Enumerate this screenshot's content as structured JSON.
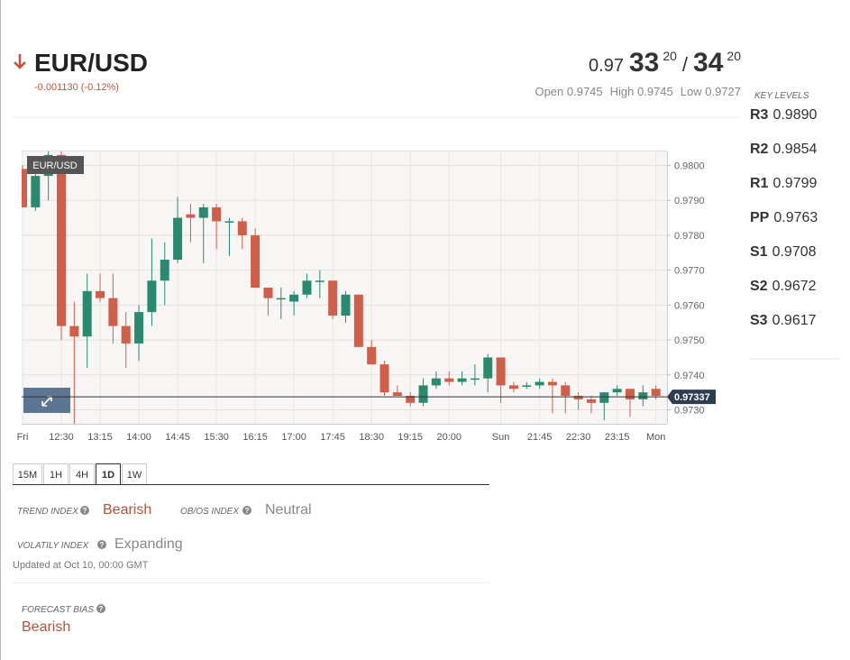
{
  "header": {
    "symbol": "EUR/USD",
    "change": "-0.001130 (-0.12%)",
    "price": [
      "0.97",
      "33",
      "20",
      "/",
      "34",
      "20"
    ],
    "open": "Open 0.9745",
    "high": "High 0.9745",
    "low": "Low 0.9727"
  },
  "key_levels": {
    "title": "KEY LEVELS",
    "rows": [
      {
        "label": "R3",
        "value": "0.9890"
      },
      {
        "label": "R2",
        "value": "0.9854"
      },
      {
        "label": "R1",
        "value": "0.9799"
      },
      {
        "label": "PP",
        "value": "0.9763"
      },
      {
        "label": "S1",
        "value": "0.9708"
      },
      {
        "label": "S2",
        "value": "0.9672"
      },
      {
        "label": "S3",
        "value": "0.9617"
      }
    ]
  },
  "chart_data": {
    "type": "candlestick",
    "title": "EUR/USD",
    "categories": [
      "Fri",
      null,
      null,
      "12:30",
      null,
      null,
      "13:15",
      null,
      null,
      "14:00",
      null,
      null,
      "14:45",
      null,
      null,
      "15:30",
      null,
      null,
      "16:15",
      null,
      null,
      "17:00",
      null,
      null,
      "17:45",
      null,
      null,
      "18:30",
      null,
      null,
      "19:15",
      null,
      null,
      "20:00",
      null,
      null,
      null,
      "Sun",
      null,
      null,
      "21:45",
      null,
      null,
      "22:30",
      null,
      null,
      "23:15",
      null,
      null,
      "Mon"
    ],
    "open": [
      0.9799,
      0.9788,
      0.9797,
      0.9803,
      0.9754,
      0.9751,
      0.9764,
      0.9762,
      0.9754,
      0.9749,
      0.9758,
      0.9767,
      0.9773,
      0.9786,
      0.9785,
      0.9788,
      0.9784,
      0.9784,
      0.978,
      0.9765,
      0.9762,
      0.9761,
      0.9763,
      0.9767,
      0.9767,
      0.9757,
      0.9763,
      0.9748,
      0.9743,
      0.9735,
      0.9734,
      0.9732,
      0.9737,
      0.9739,
      0.9738,
      0.9739,
      0.9739,
      0.9745,
      0.9737,
      0.9737,
      0.9737,
      0.9738,
      0.9737,
      0.9734,
      0.9733,
      0.9732,
      0.9735,
      0.9736,
      0.9733,
      0.9736
    ],
    "high": [
      0.98,
      0.98,
      0.9804,
      0.9804,
      0.9761,
      0.9769,
      0.9769,
      0.9769,
      0.9758,
      0.976,
      0.9779,
      0.9778,
      0.9791,
      0.9789,
      0.9789,
      0.9789,
      0.9785,
      0.9785,
      0.9782,
      0.9765,
      0.9765,
      0.9764,
      0.9769,
      0.977,
      0.9767,
      0.9764,
      0.9763,
      0.975,
      0.9744,
      0.9737,
      0.9735,
      0.9739,
      0.9741,
      0.9741,
      0.9741,
      0.9743,
      0.9746,
      0.9745,
      0.9738,
      0.9738,
      0.9739,
      0.9739,
      0.9738,
      0.9735,
      0.9734,
      0.9735,
      0.9737,
      0.9736,
      0.9737,
      0.9737
    ],
    "low": [
      0.9788,
      0.9787,
      0.979,
      0.975,
      0.9726,
      0.9742,
      0.9761,
      0.9749,
      0.9742,
      0.9744,
      0.9754,
      0.976,
      0.9772,
      0.9778,
      0.9772,
      0.9776,
      0.9774,
      0.9776,
      0.9765,
      0.9757,
      0.9756,
      0.9757,
      0.9762,
      0.9762,
      0.9756,
      0.9755,
      0.9748,
      0.9743,
      0.9734,
      0.9734,
      0.9731,
      0.9731,
      0.9736,
      0.9737,
      0.9737,
      0.9737,
      0.9735,
      0.9732,
      0.9735,
      0.9736,
      0.9736,
      0.9729,
      0.9729,
      0.973,
      0.9729,
      0.9727,
      0.9734,
      0.9728,
      0.9731,
      0.9733
    ],
    "close": [
      0.9788,
      0.9797,
      0.9803,
      0.9754,
      0.9751,
      0.9764,
      0.9762,
      0.9754,
      0.9749,
      0.9758,
      0.9767,
      0.9773,
      0.9785,
      0.9785,
      0.9788,
      0.9784,
      0.9784,
      0.978,
      0.9765,
      0.9762,
      0.9762,
      0.9763,
      0.9767,
      0.9767,
      0.9757,
      0.9763,
      0.9748,
      0.9743,
      0.9735,
      0.9734,
      0.9732,
      0.9737,
      0.9739,
      0.9738,
      0.9739,
      0.9739,
      0.9745,
      0.9737,
      0.9736,
      0.9737,
      0.9738,
      0.9737,
      0.9734,
      0.9733,
      0.9732,
      0.9735,
      0.9736,
      0.9733,
      0.9735,
      0.9734
    ],
    "up_color": "#2a8a70",
    "down_color": "#cf5f49",
    "last_price": 0.97337,
    "ylim": [
      0.9726,
      0.9804
    ],
    "yticks": [
      {
        "value": 0.973,
        "label": "0.9730"
      },
      {
        "value": 0.974,
        "label": "0.9740"
      },
      {
        "value": 0.975,
        "label": "0.9750"
      },
      {
        "value": 0.976,
        "label": "0.9760"
      },
      {
        "value": 0.977,
        "label": "0.9770"
      },
      {
        "value": 0.978,
        "label": "0.9780"
      },
      {
        "value": 0.979,
        "label": "0.9790"
      },
      {
        "value": 0.98,
        "label": "0.9800"
      }
    ],
    "grid": true
  },
  "timeframes": {
    "tabs": [
      "15M",
      "1H",
      "4H",
      "1D",
      "1W"
    ],
    "active": 3
  },
  "indices": {
    "trend": {
      "label": "TREND INDEX",
      "value": "Bearish"
    },
    "obos": {
      "label": "OB/OS INDEX",
      "value": "Neutral"
    },
    "volatility": {
      "label": "VOLATILY INDEX",
      "value": "Expanding"
    },
    "updated": "Updated at Oct 10, 00:00 GMT"
  },
  "forecast": {
    "label": "FORECAST BIAS",
    "value": "Bearish"
  }
}
